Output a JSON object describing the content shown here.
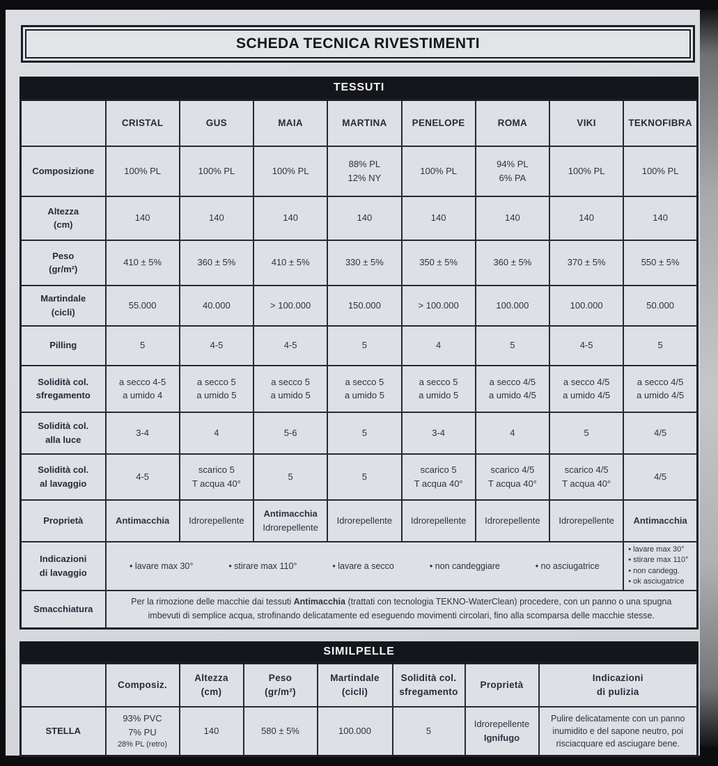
{
  "title": "SCHEDA TECNICA RIVESTIMENTI",
  "format": {
    "bold_terms": [
      "Antimacchia",
      "Ignifugo"
    ],
    "small_terms": [
      "28% PL (retro)"
    ]
  },
  "tessuti": {
    "section_title": "TESSUTI",
    "columns": [
      "CRISTAL",
      "GUS",
      "MAIA",
      "MARTINA",
      "PENELOPE",
      "ROMA",
      "VIKI",
      "TEKNOFIBRA"
    ],
    "rows": [
      {
        "label": [
          "Composizione"
        ],
        "values": [
          [
            "100% PL"
          ],
          [
            "100% PL"
          ],
          [
            "100% PL"
          ],
          [
            "88% PL",
            "12% NY"
          ],
          [
            "100% PL"
          ],
          [
            "94% PL",
            "6% PA"
          ],
          [
            "100% PL"
          ],
          [
            "100% PL"
          ]
        ]
      },
      {
        "label": [
          "Altezza",
          "(cm)"
        ],
        "values": [
          [
            "140"
          ],
          [
            "140"
          ],
          [
            "140"
          ],
          [
            "140"
          ],
          [
            "140"
          ],
          [
            "140"
          ],
          [
            "140"
          ],
          [
            "140"
          ]
        ]
      },
      {
        "label": [
          "Peso",
          "(gr/m²)"
        ],
        "values": [
          [
            "410 ± 5%"
          ],
          [
            "360 ± 5%"
          ],
          [
            "410 ± 5%"
          ],
          [
            "330 ± 5%"
          ],
          [
            "350 ± 5%"
          ],
          [
            "360 ± 5%"
          ],
          [
            "370 ± 5%"
          ],
          [
            "550 ± 5%"
          ]
        ]
      },
      {
        "label": [
          "Martindale",
          "(cicli)"
        ],
        "values": [
          [
            "55.000"
          ],
          [
            "40.000"
          ],
          [
            "> 100.000"
          ],
          [
            "150.000"
          ],
          [
            "> 100.000"
          ],
          [
            "100.000"
          ],
          [
            "100.000"
          ],
          [
            "50.000"
          ]
        ]
      },
      {
        "label": [
          "Pilling"
        ],
        "values": [
          [
            "5"
          ],
          [
            "4-5"
          ],
          [
            "4-5"
          ],
          [
            "5"
          ],
          [
            "4"
          ],
          [
            "5"
          ],
          [
            "4-5"
          ],
          [
            "5"
          ]
        ]
      },
      {
        "label": [
          "Solidità col.",
          "sfregamento"
        ],
        "values": [
          [
            "a secco 4-5",
            "a umido 4"
          ],
          [
            "a secco 5",
            "a umido 5"
          ],
          [
            "a secco 5",
            "a umido 5"
          ],
          [
            "a secco 5",
            "a umido 5"
          ],
          [
            "a secco 5",
            "a umido 5"
          ],
          [
            "a secco 4/5",
            "a umido 4/5"
          ],
          [
            "a secco 4/5",
            "a umido 4/5"
          ],
          [
            "a secco 4/5",
            "a umido 4/5"
          ]
        ]
      },
      {
        "label": [
          "Solidità col.",
          "alla luce"
        ],
        "values": [
          [
            "3-4"
          ],
          [
            "4"
          ],
          [
            "5-6"
          ],
          [
            "5"
          ],
          [
            "3-4"
          ],
          [
            "4"
          ],
          [
            "5"
          ],
          [
            "4/5"
          ]
        ]
      },
      {
        "label": [
          "Solidità col.",
          "al lavaggio"
        ],
        "values": [
          [
            "4-5"
          ],
          [
            "scarico 5",
            "T acqua 40°"
          ],
          [
            "5"
          ],
          [
            "5"
          ],
          [
            "scarico 5",
            "T acqua 40°"
          ],
          [
            "scarico 4/5",
            "T acqua 40°"
          ],
          [
            "scarico 4/5",
            "T acqua 40°"
          ],
          [
            "4/5"
          ]
        ]
      },
      {
        "label": [
          "Proprietà"
        ],
        "values": [
          [
            "Antimacchia"
          ],
          [
            "Idrorepellente"
          ],
          [
            "Antimacchia",
            "Idrorepellente"
          ],
          [
            "Idrorepellente"
          ],
          [
            "Idrorepellente"
          ],
          [
            "Idrorepellente"
          ],
          [
            "Idrorepellente"
          ],
          [
            "Antimacchia"
          ]
        ]
      }
    ],
    "washing": {
      "label": [
        "Indicazioni",
        "di lavaggio"
      ],
      "shared_items": [
        "• lavare max 30°",
        "• stirare max 110°",
        "• lavare a secco",
        "• non candeggiare",
        "• no asciugatrice"
      ],
      "teknofibra_items": [
        "• lavare max 30°",
        "• stirare max 110°",
        "• non candegg.",
        "• ok asciugatrice"
      ]
    },
    "smacchiatura": {
      "label": [
        "Smacchiatura"
      ],
      "parts": [
        {
          "t": "Per la rimozione delle macchie dai tessuti "
        },
        {
          "t": "Antimacchia",
          "b": true
        },
        {
          "t": " (trattati con tecnologia TEKNO-WaterClean) procedere, con un panno o una spugna imbevuti di semplice acqua,  strofinando delicatamente ed eseguendo movimenti circolari, fino alla scomparsa delle macchie stesse."
        }
      ]
    }
  },
  "similpelle": {
    "section_title": "SIMILPELLE",
    "headers": [
      [
        ""
      ],
      [
        "Composiz."
      ],
      [
        "Altezza",
        "(cm)"
      ],
      [
        "Peso",
        "(gr/m²)"
      ],
      [
        "Martindale",
        "(cicli)"
      ],
      [
        "Solidità col.",
        "sfregamento"
      ],
      [
        "Proprietà"
      ],
      [
        "Indicazioni",
        "di pulizia"
      ]
    ],
    "row": {
      "name": "STELLA",
      "cells": [
        [
          "93% PVC",
          "7% PU",
          "28% PL (retro)"
        ],
        [
          "140"
        ],
        [
          "580 ± 5%"
        ],
        [
          "100.000"
        ],
        [
          "5"
        ],
        [
          "Idrorepellente",
          "Ignifugo"
        ]
      ],
      "cleaning": "Pulire delicatamente con un panno inumidito e del sapone neutro, poi risciacquare ed asciugare bene."
    }
  }
}
